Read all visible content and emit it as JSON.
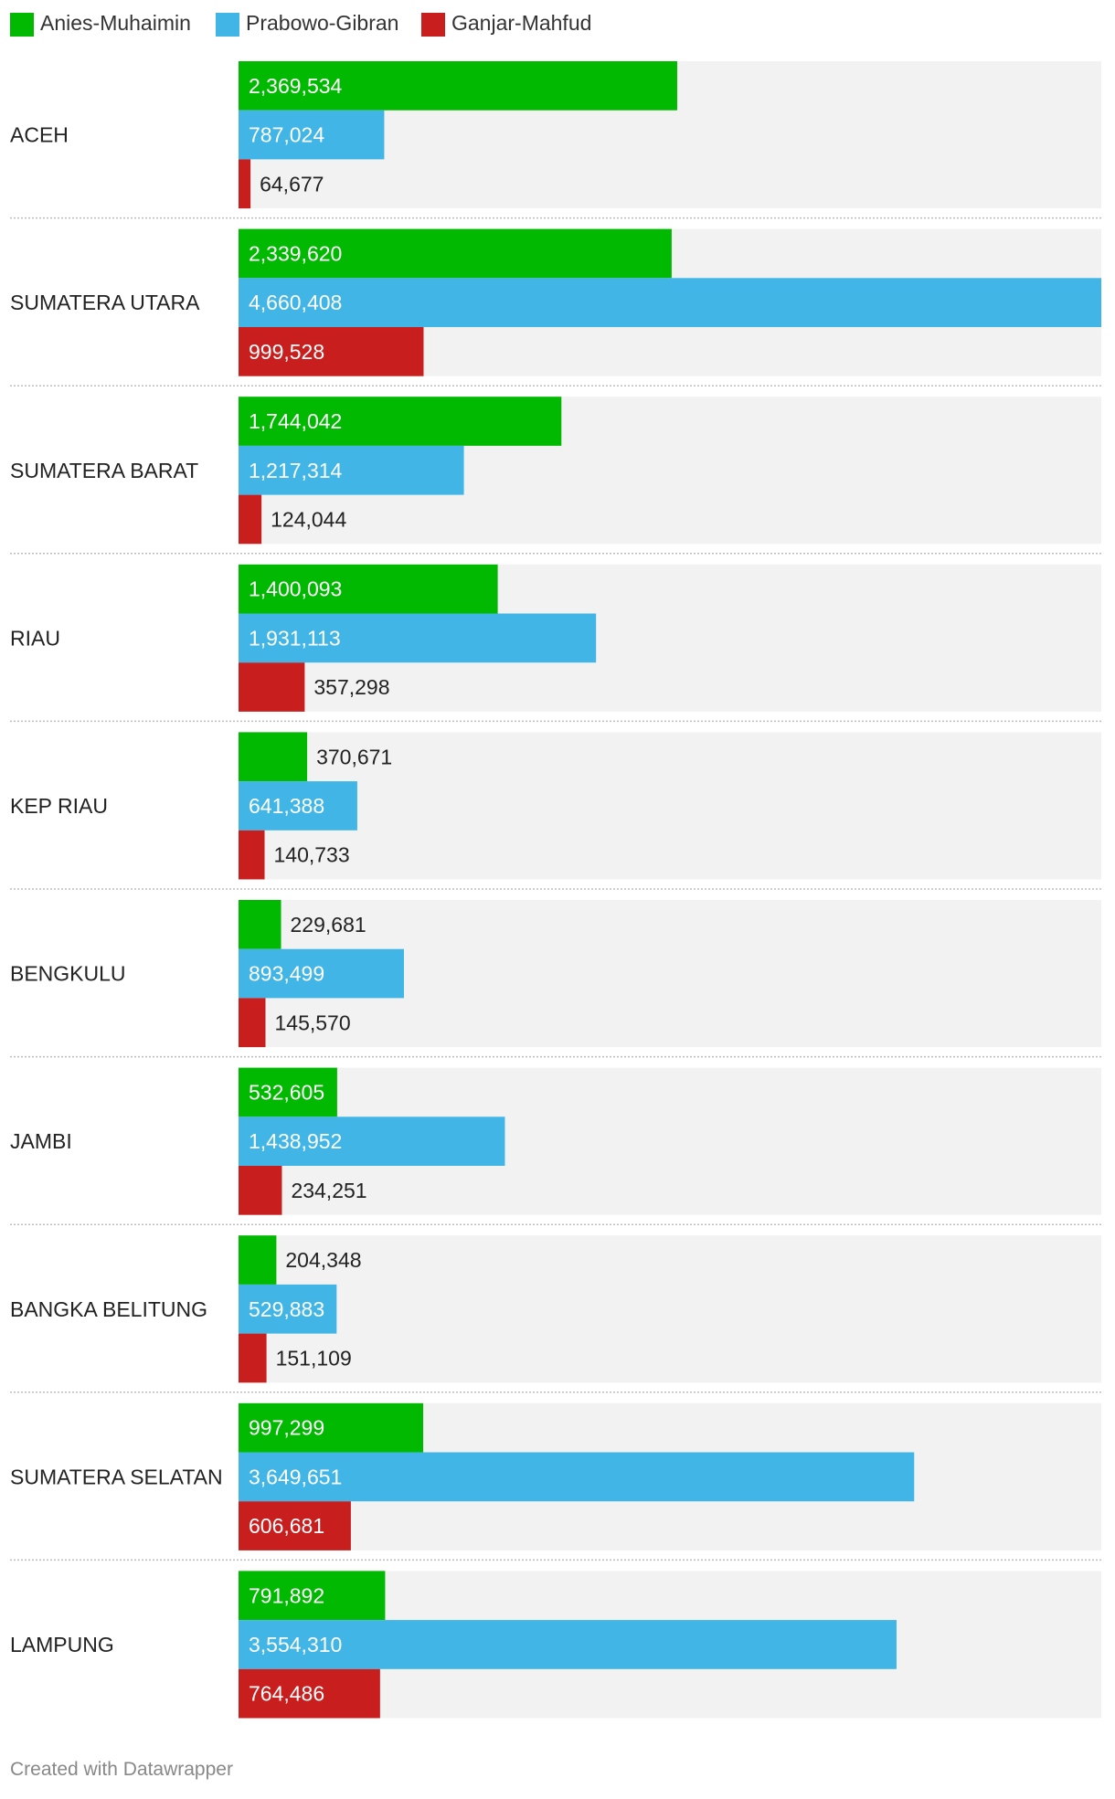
{
  "legend": [
    {
      "name": "Anies-Muhaimin",
      "color": "#00b900"
    },
    {
      "name": "Prabowo-Gibran",
      "color": "#41b6e6"
    },
    {
      "name": "Ganjar-Mahfud",
      "color": "#c81e1e"
    }
  ],
  "footer": "Created with Datawrapper",
  "chart_data": {
    "type": "bar",
    "orientation": "horizontal",
    "grouped": true,
    "title": "",
    "xlabel": "",
    "ylabel": "",
    "xlim": [
      0,
      4660408
    ],
    "grid": false,
    "legend_position": "top-left",
    "categories": [
      "ACEH",
      "SUMATERA UTARA",
      "SUMATERA BARAT",
      "RIAU",
      "KEP RIAU",
      "BENGKULU",
      "JAMBI",
      "BANGKA BELITUNG",
      "SUMATERA SELATAN",
      "LAMPUNG"
    ],
    "series": [
      {
        "name": "Anies-Muhaimin",
        "color": "#00b900",
        "values": [
          2369534,
          2339620,
          1744042,
          1400093,
          370671,
          229681,
          532605,
          204348,
          997299,
          791892
        ]
      },
      {
        "name": "Prabowo-Gibran",
        "color": "#41b6e6",
        "values": [
          787024,
          4660408,
          1217314,
          1931113,
          641388,
          893499,
          1438952,
          529883,
          3649651,
          3554310
        ]
      },
      {
        "name": "Ganjar-Mahfud",
        "color": "#c81e1e",
        "values": [
          64677,
          999528,
          124044,
          357298,
          140733,
          145570,
          234251,
          151109,
          606681,
          764486
        ]
      }
    ]
  }
}
